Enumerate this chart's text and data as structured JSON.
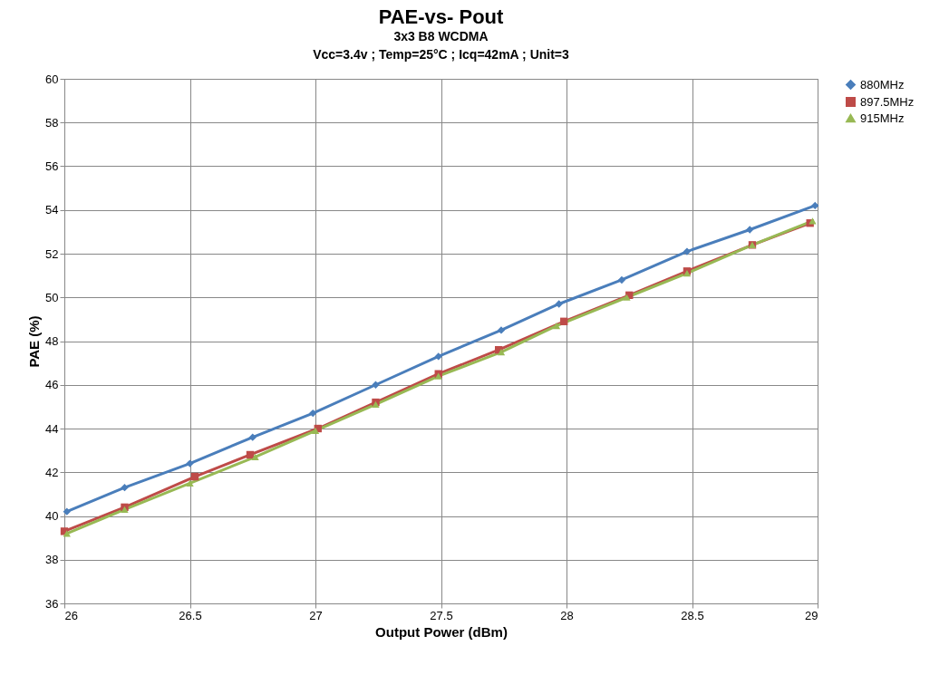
{
  "chart_data": {
    "type": "line",
    "title": "PAE-vs- Pout",
    "subtitle": "3x3 B8 WCDMA\nVcc=3.4v ; Temp=25°C ; Icq=42mA ; Unit=3",
    "xlabel": "Output Power (dBm)",
    "ylabel": "PAE (%)",
    "xlim": [
      26,
      29
    ],
    "xticks": [
      26,
      26.5,
      27,
      27.5,
      28,
      28.5,
      29
    ],
    "ylim": [
      36,
      60
    ],
    "yticks": [
      36,
      38,
      40,
      42,
      44,
      46,
      48,
      50,
      52,
      54,
      56,
      58,
      60
    ],
    "grid": true,
    "legend": "right",
    "line_style": "solid",
    "series": [
      {
        "name": "880MHz",
        "color": "#4a7ebb",
        "marker": "diamond",
        "x": [
          26.01,
          26.24,
          26.5,
          26.75,
          26.99,
          27.24,
          27.49,
          27.74,
          27.97,
          28.22,
          28.48,
          28.73,
          28.99
        ],
        "values": [
          40.2,
          41.3,
          42.4,
          43.6,
          44.7,
          46.0,
          47.3,
          48.5,
          49.7,
          50.8,
          52.1,
          53.1,
          54.2
        ]
      },
      {
        "name": "897.5MHz",
        "color": "#be4b48",
        "marker": "square",
        "x": [
          26.0,
          26.24,
          26.52,
          26.74,
          27.01,
          27.24,
          27.49,
          27.73,
          27.99,
          28.25,
          28.48,
          28.74,
          28.97
        ],
        "values": [
          39.3,
          40.4,
          41.8,
          42.8,
          44.0,
          45.2,
          46.5,
          47.6,
          48.9,
          50.1,
          51.2,
          52.4,
          53.4
        ]
      },
      {
        "name": "915MHz",
        "color": "#98b954",
        "marker": "triangle",
        "x": [
          26.01,
          26.24,
          26.5,
          26.76,
          27.0,
          27.24,
          27.49,
          27.74,
          27.96,
          28.24,
          28.48,
          28.74,
          28.98
        ],
        "values": [
          39.2,
          40.3,
          41.5,
          42.7,
          43.9,
          45.1,
          46.4,
          47.5,
          48.7,
          50.0,
          51.1,
          52.4,
          53.5
        ]
      }
    ]
  }
}
